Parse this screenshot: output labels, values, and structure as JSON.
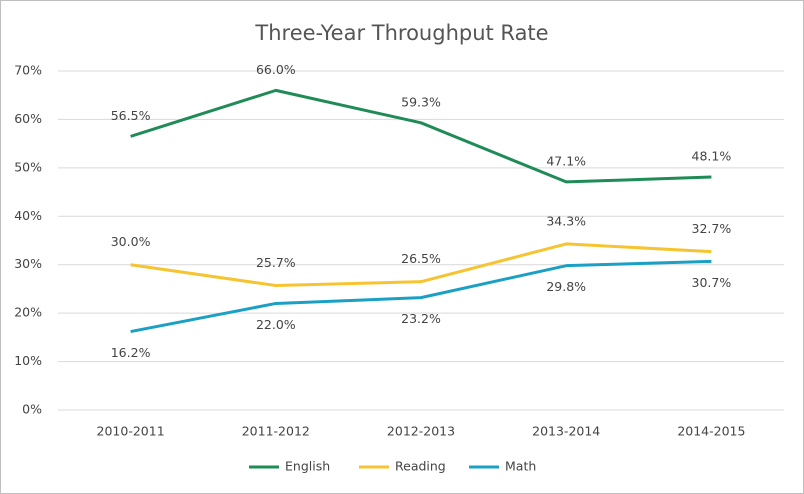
{
  "chart_data": {
    "type": "line",
    "title": "Three-Year Throughput Rate",
    "categories": [
      "2010-2011",
      "2011-2012",
      "2012-2013",
      "2013-2014",
      "2014-2015"
    ],
    "series": [
      {
        "name": "English",
        "color": "#1f8b57",
        "values": [
          56.5,
          66.0,
          59.3,
          47.1,
          48.1
        ],
        "value_labels": [
          "56.5%",
          "66.0%",
          "59.3%",
          "47.1%",
          "48.1%"
        ]
      },
      {
        "name": "Reading",
        "color": "#f7c431",
        "values": [
          30.0,
          25.7,
          26.5,
          34.3,
          32.7
        ],
        "value_labels": [
          "30.0%",
          "25.7%",
          "26.5%",
          "34.3%",
          "32.7%"
        ]
      },
      {
        "name": "Math",
        "color": "#1aa0c4",
        "values": [
          16.2,
          22.0,
          23.2,
          29.8,
          30.7
        ],
        "value_labels": [
          "16.2%",
          "22.0%",
          "23.2%",
          "29.8%",
          "30.7%"
        ]
      }
    ],
    "ylim": [
      0,
      70
    ],
    "yticks": [
      {
        "value": 0,
        "label": "0%"
      },
      {
        "value": 10,
        "label": "10%"
      },
      {
        "value": 20,
        "label": "20%"
      },
      {
        "value": 30,
        "label": "30%"
      },
      {
        "value": 40,
        "label": "40%"
      },
      {
        "value": 50,
        "label": "50%"
      },
      {
        "value": 60,
        "label": "60%"
      },
      {
        "value": 70,
        "label": "70%"
      }
    ],
    "grid": true,
    "legend": "bottom"
  }
}
